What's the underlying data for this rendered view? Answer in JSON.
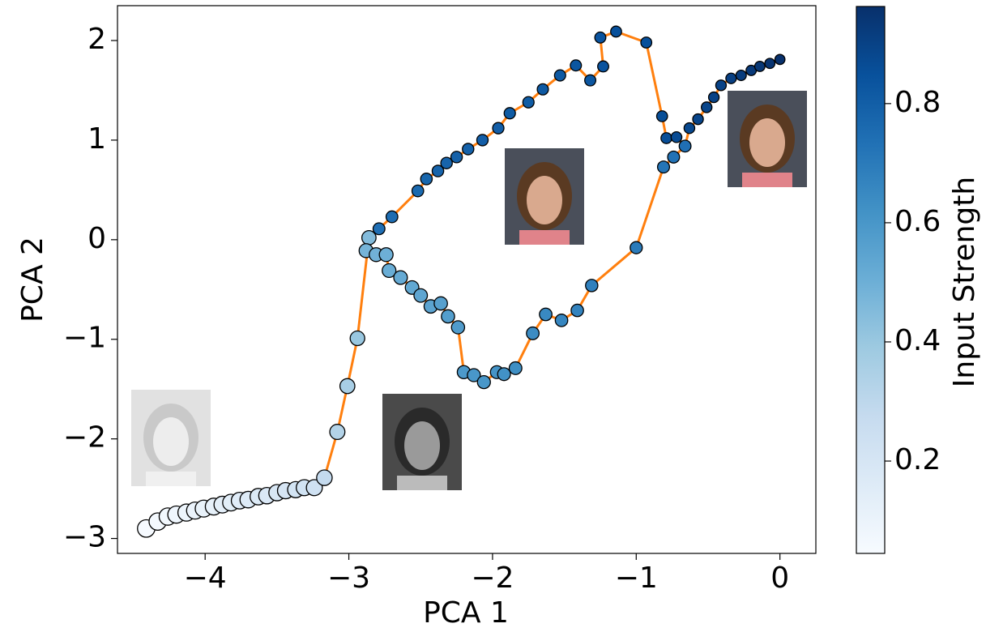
{
  "chart_data": {
    "type": "scatter",
    "xlabel": "PCA 1",
    "ylabel": "PCA 2",
    "xlim": [
      -4.61,
      0.25
    ],
    "ylim": [
      -3.15,
      2.35
    ],
    "xticks": [
      {
        "value": -4,
        "label": "−4"
      },
      {
        "value": -3,
        "label": "−3"
      },
      {
        "value": -2,
        "label": "−2"
      },
      {
        "value": -1,
        "label": "−1"
      },
      0
    ],
    "yticks": [
      {
        "value": -3,
        "label": "−3"
      },
      {
        "value": -2,
        "label": "−2"
      },
      {
        "value": -1,
        "label": "−1"
      },
      0,
      1,
      2
    ],
    "colorbar": {
      "label": "Input Strength",
      "lim": [
        0.045,
        0.963
      ],
      "ticks": [
        0.2,
        0.4,
        0.6,
        0.8
      ]
    },
    "series": [
      {
        "color": "#ff7f0e",
        "x": [
          -4.41,
          -4.33,
          -4.26,
          -4.2,
          -4.13,
          -4.07,
          -4.01,
          -3.94,
          -3.88,
          -3.82,
          -3.76,
          -3.7,
          -3.63,
          -3.57,
          -3.5,
          -3.44,
          -3.37,
          -3.31,
          -3.24,
          -3.17,
          -3.08,
          -3.01,
          -2.94,
          -2.86,
          -2.79,
          -2.7,
          -2.52,
          -2.46,
          -2.38,
          -2.32,
          -2.25,
          -2.17,
          -2.07,
          -1.96,
          -1.88,
          -1.75,
          -1.65,
          -1.53,
          -1.42,
          -1.32,
          -1.23,
          -1.25,
          -1.14,
          -0.93,
          -0.82,
          -0.79,
          -0.72,
          -0.66,
          -0.63,
          -0.57,
          -0.51,
          -0.46,
          -0.41,
          -0.34,
          -0.27,
          -0.2,
          -0.14,
          -0.07,
          0.0,
          null,
          -2.88,
          -2.81,
          -2.74,
          -2.72,
          -2.64,
          -2.56,
          -2.5,
          -2.43,
          -2.36,
          -2.31,
          -2.24,
          -2.2,
          -2.13,
          -2.06,
          -1.97,
          -1.92,
          -1.84,
          -1.72,
          -1.63,
          -1.52,
          -1.41,
          -1.31,
          -1.0,
          -0.81,
          -0.74,
          -0.66
        ],
        "values": [
          -2.9,
          -2.83,
          -2.78,
          -2.76,
          -2.74,
          -2.72,
          -2.7,
          -2.68,
          -2.66,
          -2.64,
          -2.62,
          -2.61,
          -2.58,
          -2.57,
          -2.54,
          -2.52,
          -2.51,
          -2.49,
          -2.49,
          -2.39,
          -1.93,
          -1.47,
          -0.99,
          0.02,
          0.11,
          0.23,
          0.49,
          0.61,
          0.69,
          0.77,
          0.83,
          0.91,
          1.0,
          1.12,
          1.27,
          1.38,
          1.51,
          1.65,
          1.75,
          1.6,
          1.74,
          2.03,
          2.09,
          1.98,
          1.24,
          1.02,
          1.03,
          0.94,
          1.12,
          1.21,
          1.33,
          1.43,
          1.55,
          1.62,
          1.65,
          1.7,
          1.74,
          1.77,
          1.81,
          null,
          -0.11,
          -0.15,
          -0.15,
          -0.31,
          -0.38,
          -0.48,
          -0.56,
          -0.67,
          -0.64,
          -0.77,
          -0.88,
          -1.33,
          -1.36,
          -1.43,
          -1.33,
          -1.35,
          -1.29,
          -0.94,
          -0.75,
          -0.81,
          -0.71,
          -0.46,
          -0.08,
          0.73,
          0.83,
          0.94
        ],
        "strength": [
          0.05,
          0.06,
          0.07,
          0.08,
          0.09,
          0.1,
          0.11,
          0.12,
          0.13,
          0.14,
          0.15,
          0.16,
          0.17,
          0.18,
          0.19,
          0.2,
          0.21,
          0.22,
          0.23,
          0.28,
          0.33,
          0.36,
          0.4,
          0.45,
          0.74,
          0.75,
          0.76,
          0.77,
          0.78,
          0.78,
          0.79,
          0.79,
          0.8,
          0.8,
          0.81,
          0.81,
          0.82,
          0.82,
          0.83,
          0.83,
          0.84,
          0.84,
          0.85,
          0.85,
          0.86,
          0.86,
          0.87,
          0.87,
          0.88,
          0.89,
          0.89,
          0.9,
          0.9,
          0.91,
          0.92,
          0.93,
          0.94,
          0.95,
          0.96,
          null,
          0.48,
          0.49,
          0.5,
          0.51,
          0.52,
          0.53,
          0.54,
          0.55,
          0.56,
          0.57,
          0.58,
          0.59,
          0.6,
          0.6,
          0.61,
          0.62,
          0.63,
          0.64,
          0.65,
          0.66,
          0.67,
          0.68,
          0.7,
          0.72,
          0.73,
          0.74
        ]
      }
    ]
  }
}
